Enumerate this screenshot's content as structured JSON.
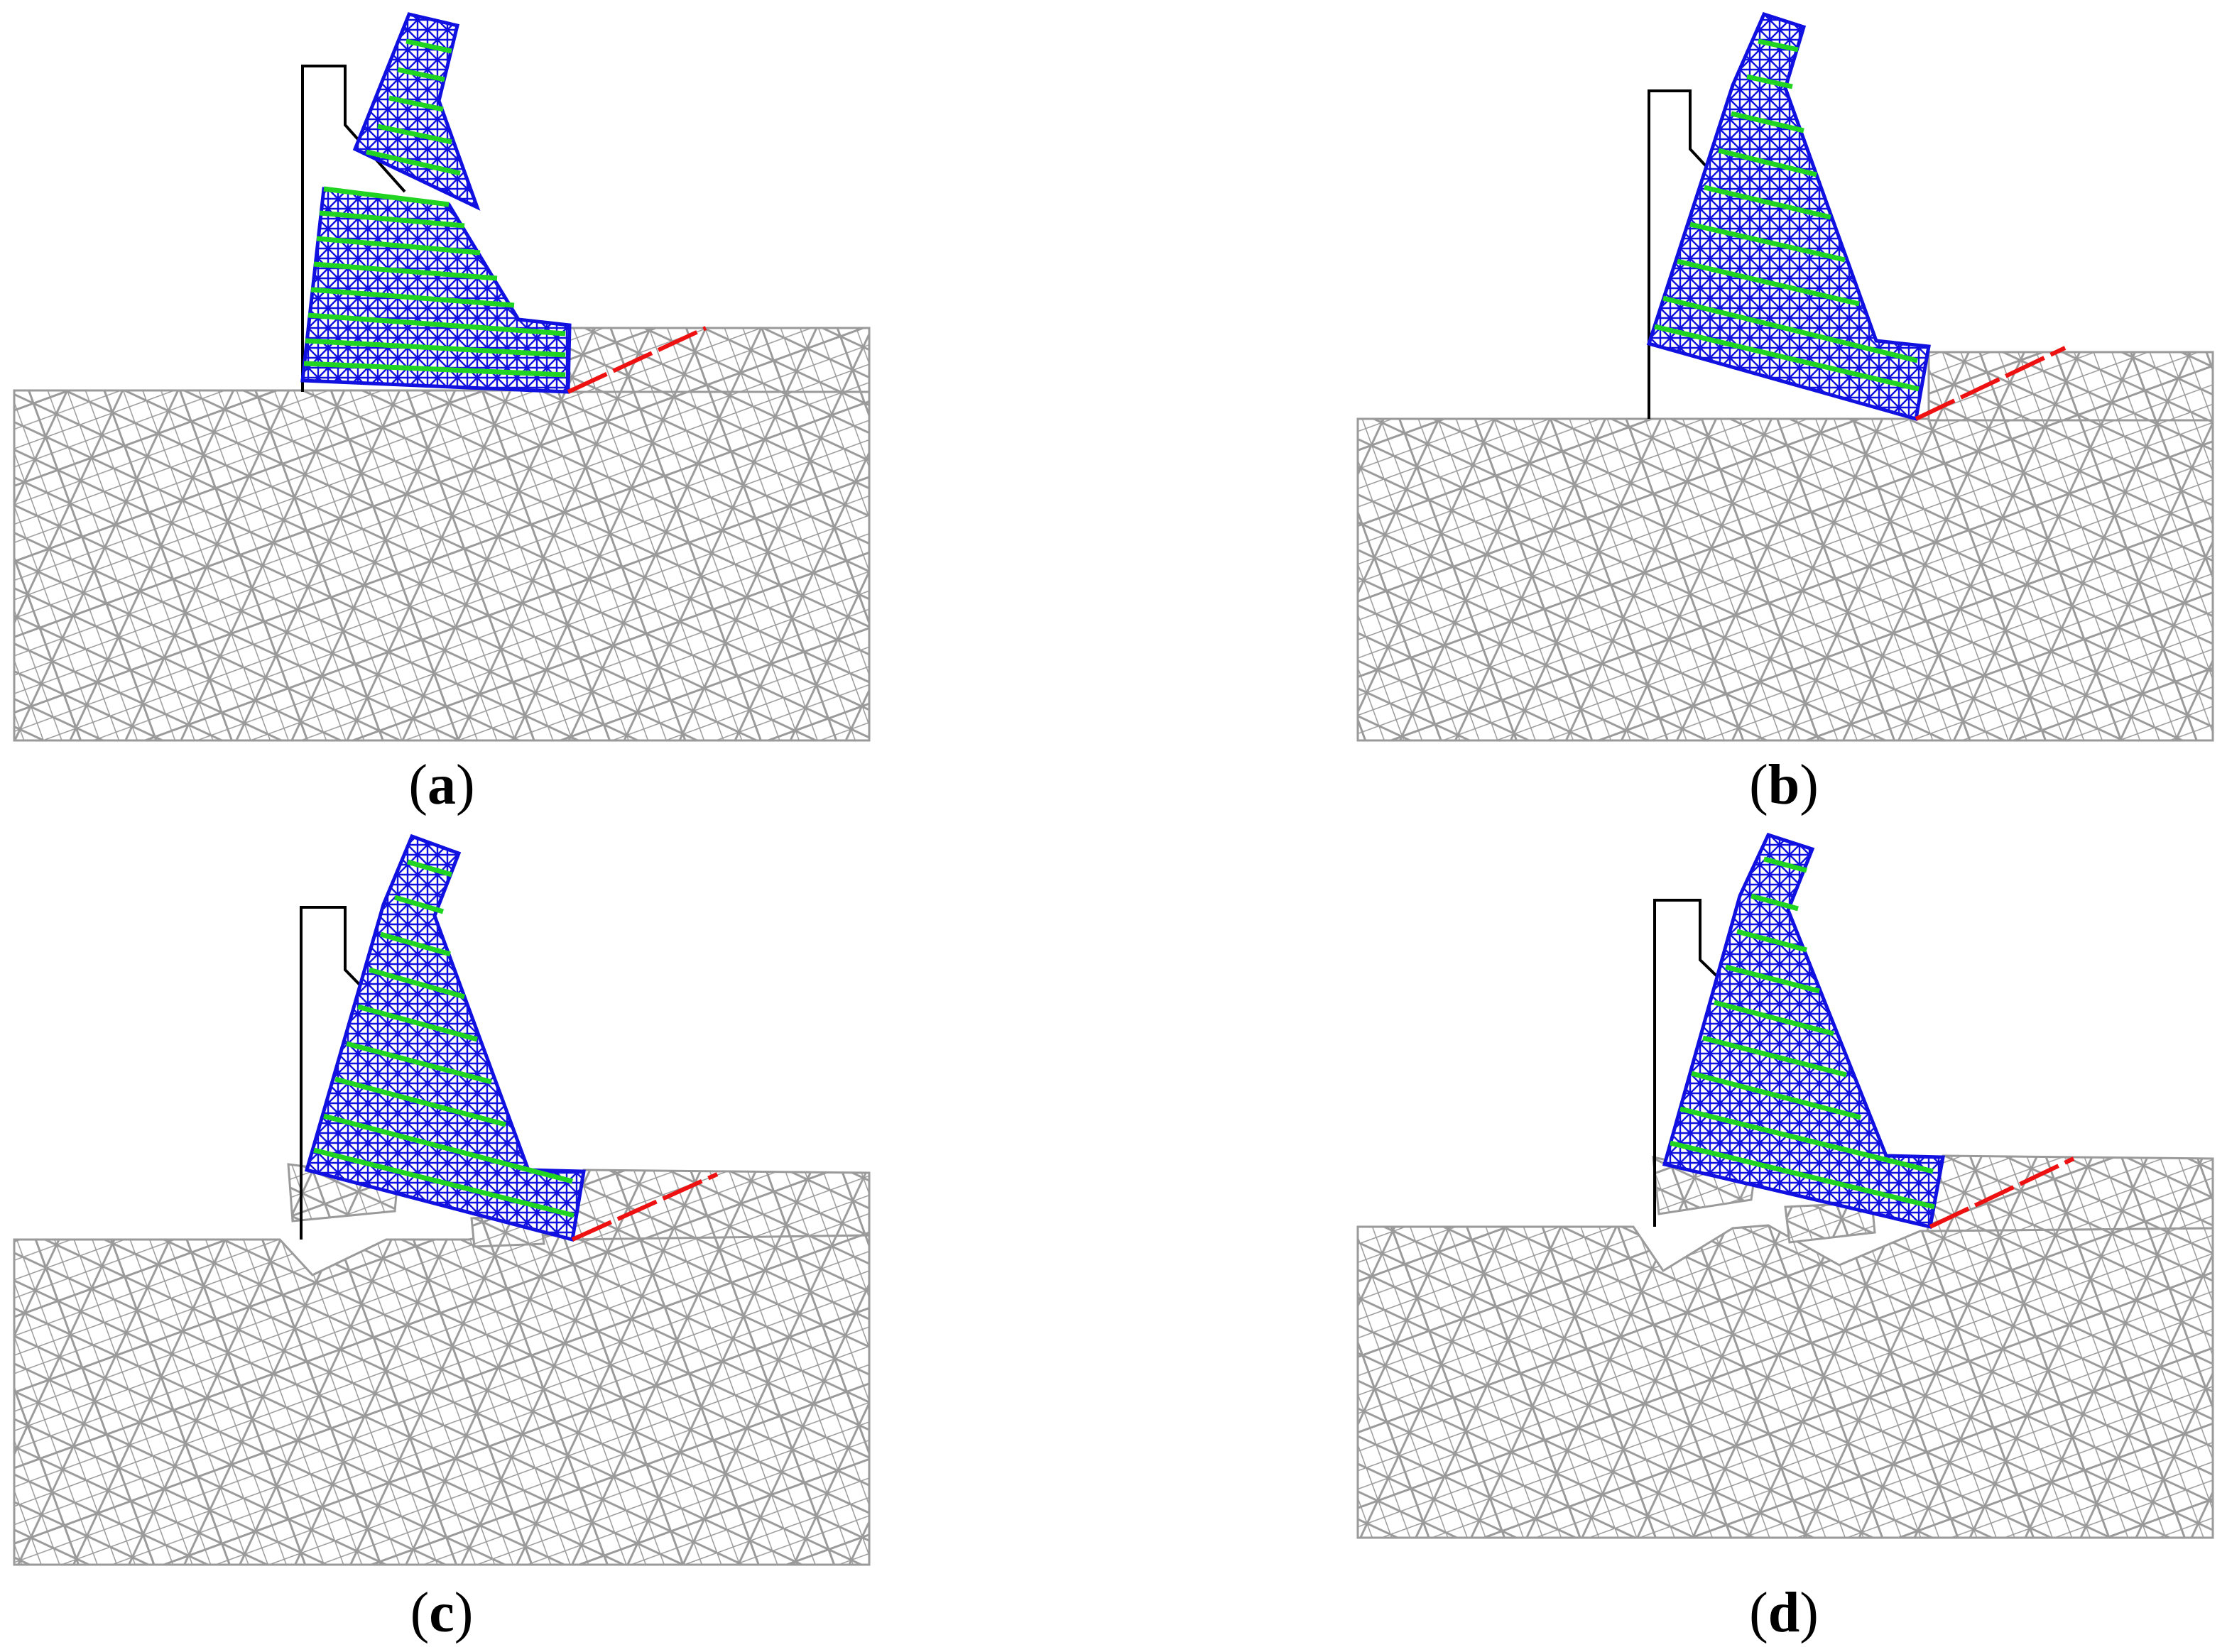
{
  "colors": {
    "rock_mesh": "#9a9a9a",
    "dam_mesh": "#1010e0",
    "dam_layer": "#22d422",
    "original_outline": "#000000",
    "weak_plane": "#ee1111",
    "background": "#ffffff"
  },
  "panels": [
    {
      "id": "a",
      "open": "(",
      "letter": "a",
      "close": ")"
    },
    {
      "id": "b",
      "open": "(",
      "letter": "b",
      "close": ")"
    },
    {
      "id": "c",
      "open": "(",
      "letter": "c",
      "close": ")"
    },
    {
      "id": "d",
      "open": "(",
      "letter": "d",
      "close": ")"
    }
  ]
}
